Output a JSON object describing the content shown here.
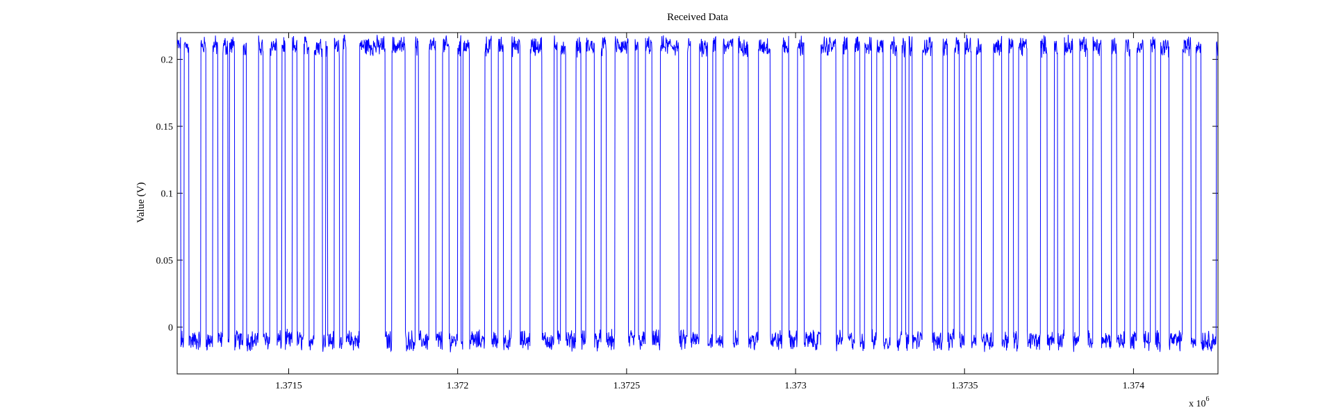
{
  "chart_data": {
    "type": "line",
    "title": "Received Data",
    "xlabel": "",
    "ylabel": "Value (V)",
    "x_multiplier_label": "x 10",
    "x_multiplier_exponent": "6",
    "xlim": [
      1371170,
      1374250
    ],
    "ylim": [
      -0.035,
      0.22
    ],
    "grid": false,
    "legend": "none",
    "line_color": "#0000ff",
    "x_ticks": [
      1371500,
      1372000,
      1372500,
      1373000,
      1373500,
      1374000
    ],
    "x_tick_labels": [
      "1.3715",
      "1.372",
      "1.3725",
      "1.373",
      "1.3735",
      "1.374"
    ],
    "y_ticks": [
      0,
      0.05,
      0.1,
      0.15,
      0.2
    ],
    "y_tick_labels": [
      "0",
      "0.05",
      "0.1",
      "0.15",
      "0.2"
    ],
    "signal": {
      "high_level": 0.21,
      "low_level": -0.01,
      "transitions_x": [
        1371180,
        1371190,
        1371205,
        1371240,
        1371255,
        1371275,
        1371290,
        1371305,
        1371320,
        1371325,
        1371340,
        1371365,
        1371375,
        1371410,
        1371425,
        1371445,
        1371465,
        1371480,
        1371490,
        1371510,
        1371525,
        1371545,
        1371560,
        1371575,
        1371600,
        1371610,
        1371615,
        1371635,
        1371650,
        1371660,
        1371670,
        1371710,
        1371785,
        1371805,
        1371845,
        1371875,
        1371885,
        1371915,
        1371935,
        1371955,
        1371975,
        1372000,
        1372010,
        1372015,
        1372035,
        1372080,
        1372100,
        1372120,
        1372135,
        1372160,
        1372185,
        1372215,
        1372250,
        1372285,
        1372295,
        1372305,
        1372320,
        1372350,
        1372365,
        1372380,
        1372405,
        1372425,
        1372440,
        1372465,
        1372505,
        1372525,
        1372535,
        1372555,
        1372575,
        1372600,
        1372655,
        1372680,
        1372690,
        1372715,
        1372740,
        1372755,
        1372765,
        1372785,
        1372815,
        1372830,
        1372860,
        1372890,
        1372925,
        1372960,
        1372980,
        1373005,
        1373025,
        1373075,
        1373120,
        1373140,
        1373155,
        1373175,
        1373190,
        1373205,
        1373225,
        1373240,
        1373260,
        1373280,
        1373300,
        1373315,
        1373325,
        1373335,
        1373345,
        1373375,
        1373405,
        1373435,
        1373450,
        1373470,
        1373485,
        1373500,
        1373520,
        1373535,
        1373550,
        1373585,
        1373610,
        1373630,
        1373645,
        1373660,
        1373685,
        1373725,
        1373745,
        1373765,
        1373775,
        1373795,
        1373820,
        1373840,
        1373865,
        1373880,
        1373905,
        1373935,
        1373950,
        1373975,
        1373990,
        1374010,
        1374030,
        1374050,
        1374065,
        1374080,
        1374105,
        1374145,
        1374170,
        1374185,
        1374200,
        1374245
      ]
    }
  }
}
